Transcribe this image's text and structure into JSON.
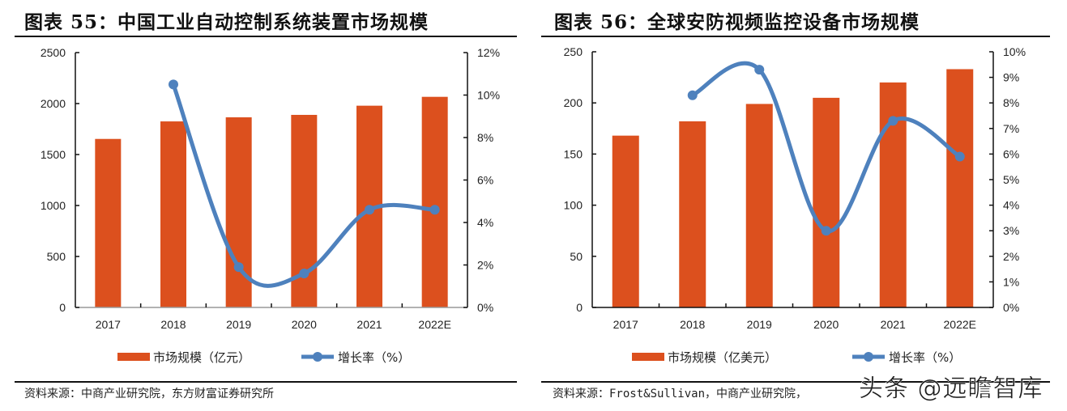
{
  "colors": {
    "bar": "#DC501E",
    "line": "#4E81BD",
    "axis": "#111111"
  },
  "watermark": "头条 @远瞻智库",
  "charts": [
    {
      "title": "图表 55：中国工业自动控制系统装置市场规模",
      "source": "资料来源：中商产业研究院，东方财富证券研究所",
      "left_ticks": [
        "0",
        "500",
        "1000",
        "1500",
        "2000",
        "2500"
      ],
      "right_ticks": [
        "0%",
        "2%",
        "4%",
        "6%",
        "8%",
        "10%",
        "12%"
      ],
      "legend": {
        "bar": "市场规模（亿元）",
        "line": "增长率（%）"
      }
    },
    {
      "title": "图表 56：全球安防视频监控设备市场规模",
      "source": "资料来源：Frost&Sullivan，中商产业研究院，",
      "left_ticks": [
        "0",
        "50",
        "100",
        "150",
        "200",
        "250"
      ],
      "right_ticks": [
        "0%",
        "1%",
        "2%",
        "3%",
        "4%",
        "5%",
        "6%",
        "7%",
        "8%",
        "9%",
        "10%"
      ],
      "legend": {
        "bar": "市场规模（亿美元）",
        "line": "增长率（%）"
      }
    }
  ],
  "chart_data": [
    {
      "type": "bar+line",
      "title": "图表 55：中国工业自动控制系统装置市场规模",
      "categories": [
        "2017",
        "2018",
        "2019",
        "2020",
        "2021",
        "2022E"
      ],
      "series": [
        {
          "name": "市场规模（亿元）",
          "type": "bar",
          "axis": "left",
          "values": [
            1653,
            1825,
            1865,
            1889,
            1979,
            2066
          ]
        },
        {
          "name": "增长率（%）",
          "type": "line",
          "axis": "right",
          "values": [
            null,
            10.5,
            1.9,
            1.6,
            4.6,
            4.6
          ]
        }
      ],
      "ylim_left": [
        0,
        2500
      ],
      "ylim_right": [
        0,
        12
      ],
      "right_unit": "%",
      "legend": "bottom",
      "grid": false
    },
    {
      "type": "bar+line",
      "title": "图表 56：全球安防视频监控设备市场规模",
      "categories": [
        "2017",
        "2018",
        "2019",
        "2020",
        "2021",
        "2022E"
      ],
      "series": [
        {
          "name": "市场规模（亿美元）",
          "type": "bar",
          "axis": "left",
          "values": [
            168,
            182,
            199,
            205,
            220,
            233
          ]
        },
        {
          "name": "增长率（%）",
          "type": "line",
          "axis": "right",
          "values": [
            null,
            8.3,
            9.3,
            3.0,
            7.3,
            5.9
          ]
        }
      ],
      "ylim_left": [
        0,
        250
      ],
      "ylim_right": [
        0,
        10
      ],
      "right_unit": "%",
      "legend": "bottom",
      "grid": false
    }
  ]
}
